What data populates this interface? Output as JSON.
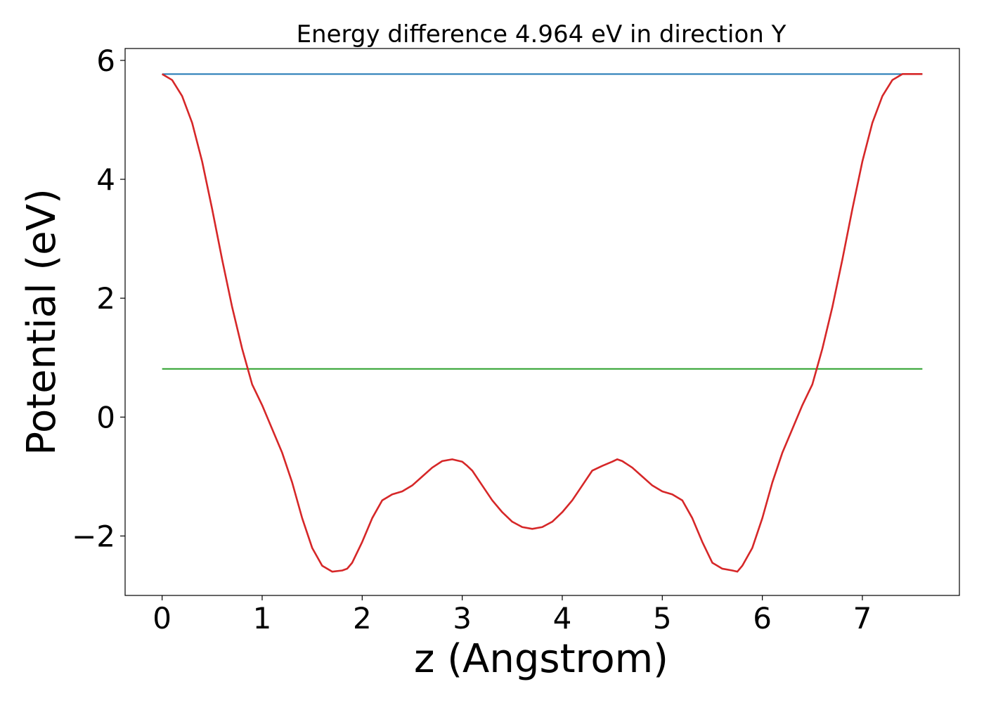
{
  "chart_data": {
    "type": "line",
    "title": "Energy difference 4.964 eV in direction Y",
    "xlabel": "z (Angstrom)",
    "ylabel": "Potential (eV)",
    "xlim": [
      -0.37,
      7.97
    ],
    "ylim": [
      -3.0,
      6.2
    ],
    "xticks": [
      0,
      1,
      2,
      3,
      4,
      5,
      6,
      7
    ],
    "xtick_labels": [
      "0",
      "1",
      "2",
      "3",
      "4",
      "5",
      "6",
      "7"
    ],
    "yticks": [
      -2,
      0,
      2,
      4,
      6
    ],
    "ytick_labels": [
      "−2",
      "0",
      "2",
      "4",
      "6"
    ],
    "grid": false,
    "legend": null,
    "series": [
      {
        "color": "#d62728",
        "x": [
          0.0,
          0.1,
          0.2,
          0.3,
          0.4,
          0.5,
          0.6,
          0.7,
          0.8,
          0.9,
          1.0,
          1.1,
          1.2,
          1.3,
          1.4,
          1.5,
          1.6,
          1.7,
          1.8,
          1.85,
          1.9,
          2.0,
          2.1,
          2.2,
          2.3,
          2.4,
          2.5,
          2.6,
          2.7,
          2.8,
          2.9,
          3.0,
          3.05,
          3.1,
          3.2,
          3.3,
          3.4,
          3.5,
          3.6,
          3.7,
          3.8,
          3.9,
          4.0,
          4.1,
          4.2,
          4.3,
          4.4,
          4.5,
          4.55,
          4.6,
          4.7,
          4.8,
          4.9,
          5.0,
          5.1,
          5.2,
          5.3,
          5.4,
          5.5,
          5.6,
          5.7,
          5.75,
          5.8,
          5.9,
          6.0,
          6.1,
          6.2,
          6.3,
          6.4,
          6.5,
          6.6,
          6.7,
          6.8,
          6.9,
          7.0,
          7.1,
          7.2,
          7.3,
          7.4,
          7.5,
          7.6
        ],
        "y": [
          5.77,
          5.67,
          5.4,
          4.95,
          4.3,
          3.5,
          2.65,
          1.85,
          1.15,
          0.55,
          0.2,
          -0.2,
          -0.6,
          -1.1,
          -1.7,
          -2.2,
          -2.5,
          -2.6,
          -2.58,
          -2.55,
          -2.45,
          -2.1,
          -1.7,
          -1.4,
          -1.3,
          -1.25,
          -1.15,
          -1.0,
          -0.85,
          -0.74,
          -0.71,
          -0.75,
          -0.82,
          -0.9,
          -1.15,
          -1.4,
          -1.6,
          -1.76,
          -1.85,
          -1.88,
          -1.85,
          -1.76,
          -1.6,
          -1.4,
          -1.15,
          -0.9,
          -0.82,
          -0.75,
          -0.71,
          -0.74,
          -0.85,
          -1.0,
          -1.15,
          -1.25,
          -1.3,
          -1.4,
          -1.7,
          -2.1,
          -2.45,
          -2.55,
          -2.58,
          -2.6,
          -2.5,
          -2.2,
          -1.7,
          -1.1,
          -0.6,
          -0.2,
          0.2,
          0.55,
          1.15,
          1.85,
          2.65,
          3.5,
          4.3,
          4.95,
          5.4,
          5.67,
          5.77,
          5.77,
          5.77
        ]
      },
      {
        "color": "#1f77b4",
        "x": [
          0.0,
          7.6
        ],
        "y": [
          5.77,
          5.77
        ]
      },
      {
        "color": "#2ca02c",
        "x": [
          0.0,
          7.6
        ],
        "y": [
          0.81,
          0.81
        ]
      }
    ]
  }
}
